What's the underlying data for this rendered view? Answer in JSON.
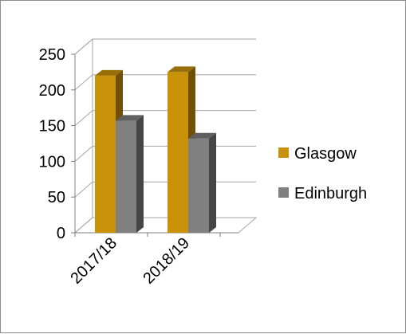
{
  "chart_data": {
    "type": "bar",
    "title": "",
    "xlabel": "",
    "ylabel": "",
    "categories": [
      "2017/18",
      "2018/19"
    ],
    "series": [
      {
        "name": "Glasgow",
        "values": [
          220,
          225
        ],
        "color": "#C9920A"
      },
      {
        "name": "Edinburgh",
        "values": [
          157,
          132
        ],
        "color": "#808080"
      }
    ],
    "ylim": [
      0,
      250
    ],
    "yticks": [
      0,
      50,
      100,
      150,
      200,
      250
    ],
    "grid": true,
    "legend_position": "right",
    "style": "3d-clustered-column"
  }
}
